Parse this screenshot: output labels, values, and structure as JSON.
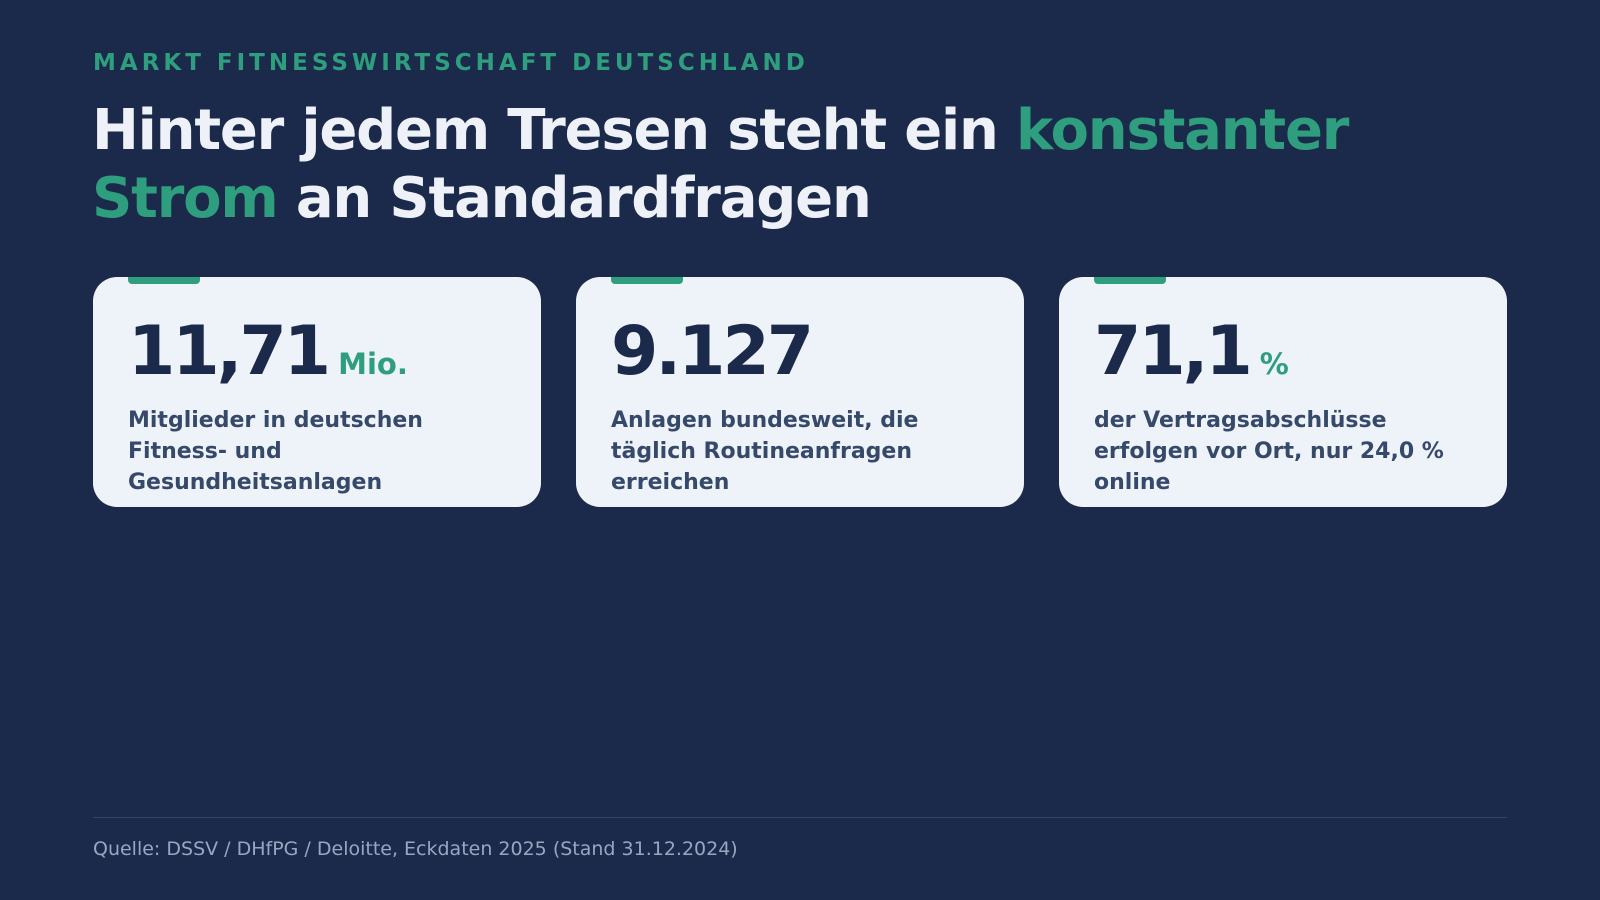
{
  "eyebrow": "MARKT FITNESSWIRTSCHAFT DEUTSCHLAND",
  "headline": {
    "part1": "Hinter jedem Tresen steht ein ",
    "accent1": "konstanter",
    "accent2": "Strom",
    "part2": " an Standardfragen"
  },
  "cards": [
    {
      "value": "11,71",
      "unit": "Mio.",
      "desc": "Mitglieder in deutschen Fitness- und Gesundheitsanlagen"
    },
    {
      "value": "9.127",
      "unit": "",
      "desc": "Anlagen bundesweit, die täglich Routineanfragen erreichen"
    },
    {
      "value": "71,1",
      "unit": "%",
      "desc": "der Vertragsabschlüsse erfolgen vor Ort, nur 24,0 % online"
    }
  ],
  "source": "Quelle: DSSV / DHfPG / Deloitte, Eckdaten 2025 (Stand 31.12.2024)",
  "colors": {
    "background": "#1b2a4a",
    "accent": "#2e9e7e",
    "card": "#eef3fa",
    "headline": "#eef2f8"
  }
}
